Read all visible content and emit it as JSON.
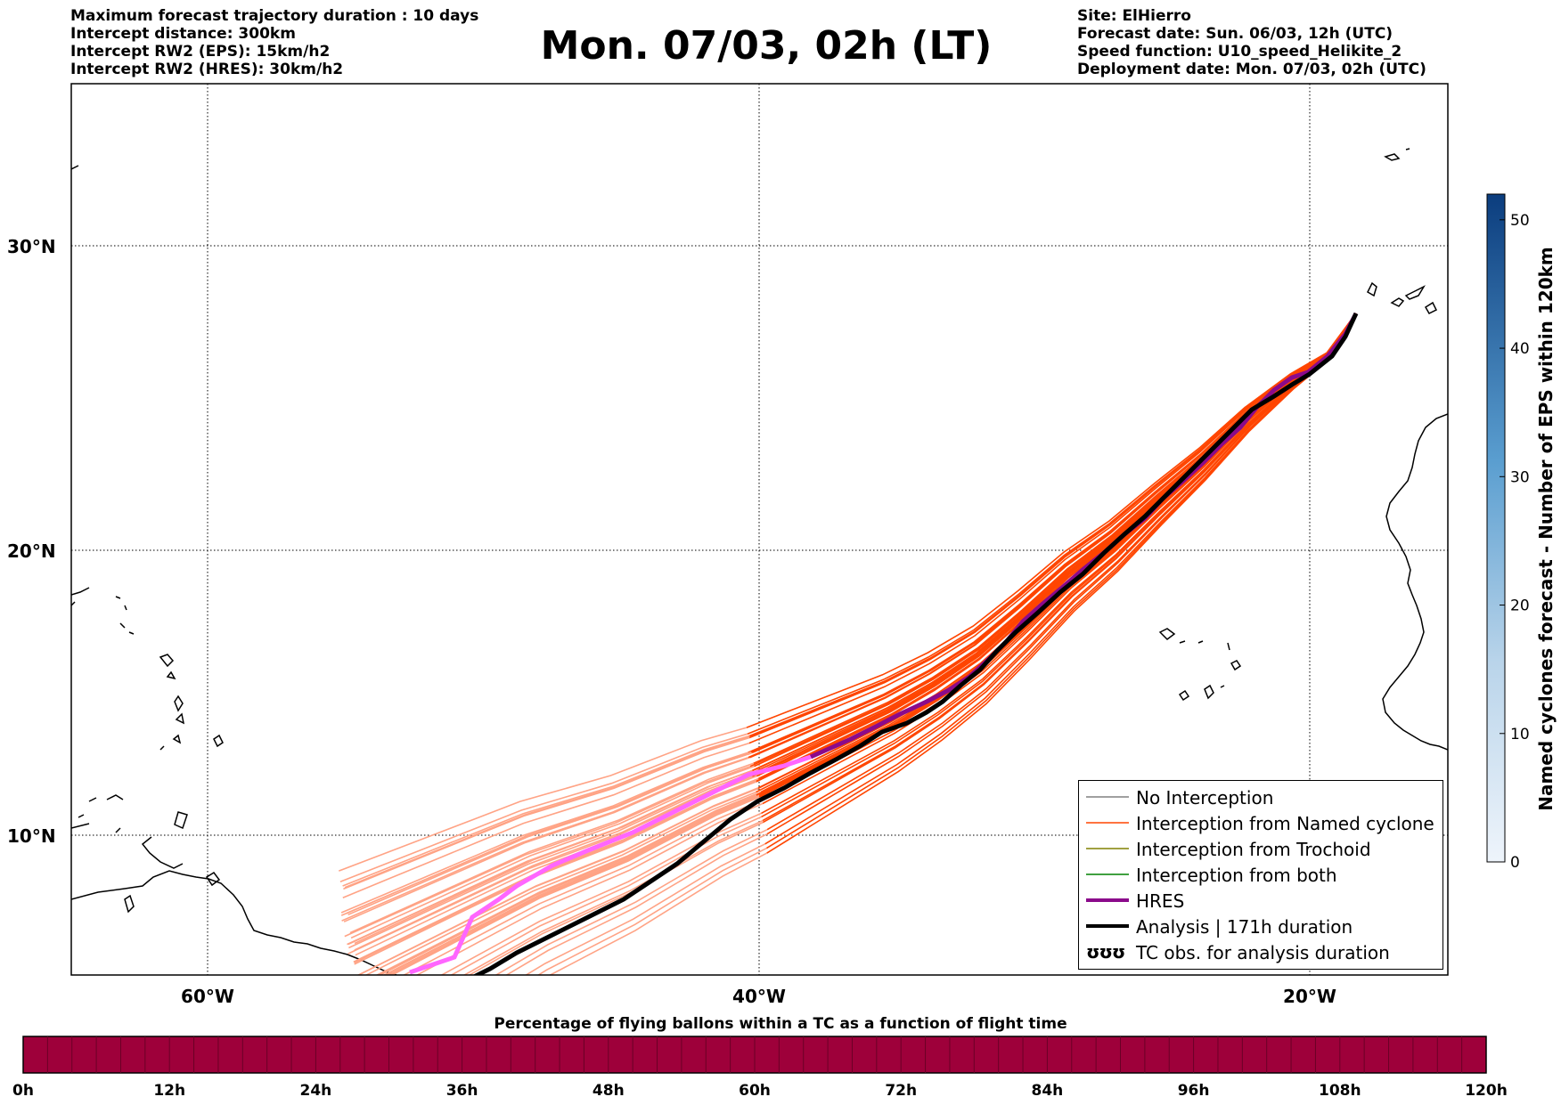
{
  "header": {
    "left_info": [
      "Maximum forecast trajectory duration : 10 days",
      "Intercept distance: 300km",
      "Intercept RW2 (EPS):  15km/h2",
      "Intercept RW2 (HRES): 30km/h2"
    ],
    "title": "Mon. 07/03, 02h (LT)",
    "right_info": [
      "Site: ElHierro",
      "Forecast date: Sun. 06/03, 12h (UTC)",
      "Speed function: U10_speed_Helikite_2",
      "Deployment date: Mon. 07/03, 02h (UTC)"
    ]
  },
  "map": {
    "lat_labels": [
      "30°N",
      "20°N",
      "10°N"
    ],
    "lon_labels": [
      "60°W",
      "40°W",
      "20°W"
    ],
    "gridline_style": "dotted",
    "colors": {
      "named_cyclone_track": "#ff4500",
      "named_cyclone_track_light": "#ffa385",
      "hres": "#8b0a8b",
      "hres_light": "#ff66ff",
      "analysis": "#000000",
      "no_interception": "#808080",
      "trochoid": "#808000",
      "both": "#008000"
    }
  },
  "legend": {
    "items": [
      {
        "label": "No Interception",
        "color": "#808080",
        "style": "thin-line"
      },
      {
        "label": "Interception from Named cyclone",
        "color": "#ff4500",
        "style": "thin-line"
      },
      {
        "label": "Interception from Trochoid",
        "color": "#808000",
        "style": "thin-line"
      },
      {
        "label": "Interception from both",
        "color": "#008000",
        "style": "thin-line"
      },
      {
        "label": "HRES",
        "color": "#8b0a8b",
        "style": "thick-line"
      },
      {
        "label": "Analysis | 171h duration",
        "color": "#000000",
        "style": "thick-line"
      },
      {
        "label": "TC obs. for analysis duration",
        "color": "#000000",
        "style": "tc-symbols",
        "symbol_text": "ʊʊʊ"
      }
    ]
  },
  "colorbar": {
    "label": "Named cyclones forecast - Number of EPS within 120km",
    "ticks": [
      "0",
      "10",
      "20",
      "30",
      "40",
      "50"
    ],
    "min": 0,
    "max": 52,
    "color_low": "#eaf2fb",
    "color_high": "#0b3d7e"
  },
  "flight_bar": {
    "title": "Percentage of flying ballons within a TC as a function of flight time",
    "ticks": [
      "0h",
      "12h",
      "24h",
      "36h",
      "48h",
      "60h",
      "72h",
      "84h",
      "96h",
      "108h",
      "120h"
    ],
    "fill_color": "#9e003a",
    "segments": 60
  }
}
